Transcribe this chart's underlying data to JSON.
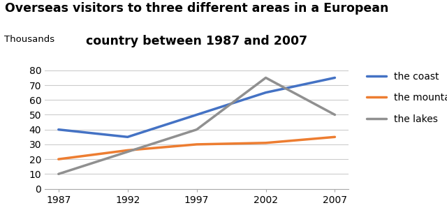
{
  "title_line1": "Overseas visitors to three different areas in a European",
  "title_line2": "country between 1987 and 2007",
  "ylabel": "Thousands",
  "years": [
    1987,
    1992,
    1997,
    2002,
    2007
  ],
  "series": [
    {
      "label": "the coast",
      "values": [
        40,
        35,
        50,
        65,
        75
      ],
      "color": "#4472C4",
      "linewidth": 2.5
    },
    {
      "label": "the mountains",
      "values": [
        20,
        26,
        30,
        31,
        35
      ],
      "color": "#ED7D31",
      "linewidth": 2.5
    },
    {
      "label": "the lakes",
      "values": [
        10,
        25,
        40,
        75,
        50
      ],
      "color": "#909090",
      "linewidth": 2.5
    }
  ],
  "ylim": [
    0,
    85
  ],
  "yticks": [
    0,
    10,
    20,
    30,
    40,
    50,
    60,
    70,
    80
  ],
  "background_color": "#ffffff",
  "legend_fontsize": 10,
  "title_fontsize": 12.5
}
